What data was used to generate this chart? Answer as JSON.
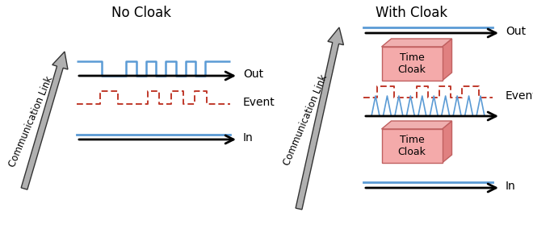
{
  "title_left": "No Cloak",
  "title_right": "With Cloak",
  "comm_link_label": "Communication Link",
  "out_label": "Out",
  "event_label": "Event",
  "in_label": "In",
  "time_cloak_label": "Time\nCloak",
  "bg_color": "#ffffff",
  "blue_color": "#5b9bd5",
  "red_dashed_color": "#c0392b",
  "arrow_color": "#111111",
  "box_face_color": "#f4aaaa",
  "box_edge_color": "#c06060",
  "title_fontsize": 12,
  "label_fontsize": 10,
  "comm_link_fontsize": 8.5
}
